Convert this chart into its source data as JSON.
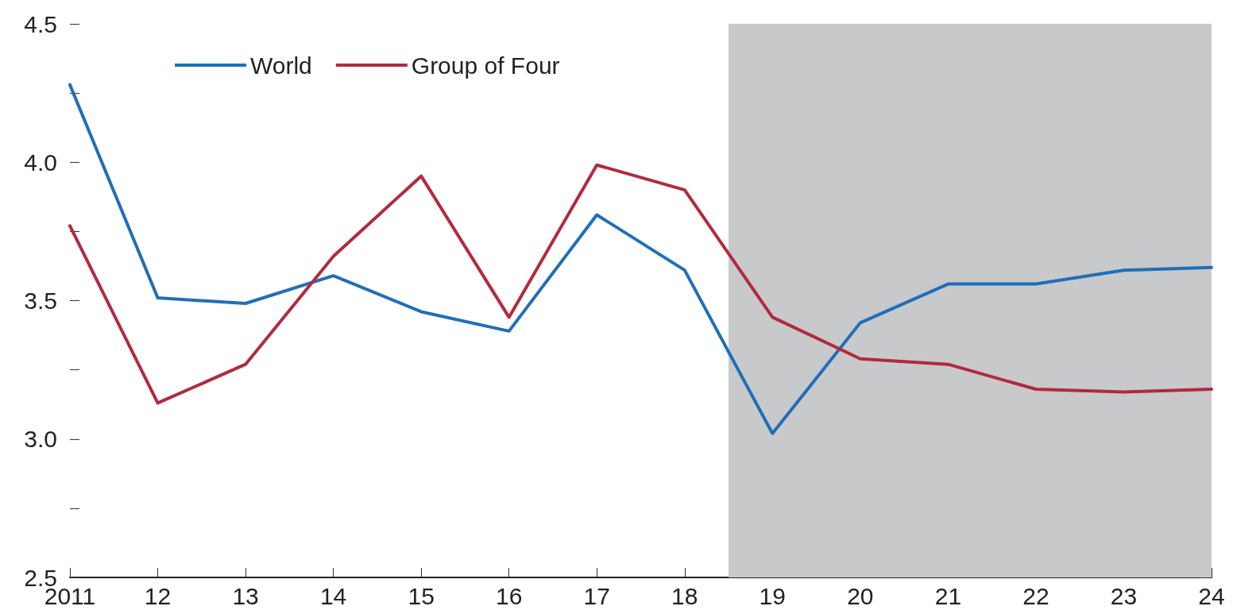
{
  "chart_data": {
    "type": "line",
    "x": [
      2011,
      2012,
      2013,
      2014,
      2015,
      2016,
      2017,
      2018,
      2019,
      2020,
      2021,
      2022,
      2023,
      2024
    ],
    "xlim": [
      2011,
      2024
    ],
    "xticks": [
      2011,
      {
        "value": 2012,
        "label": "12"
      },
      {
        "value": 2013,
        "label": "13"
      },
      {
        "value": 2014,
        "label": "14"
      },
      {
        "value": 2015,
        "label": "15"
      },
      {
        "value": 2016,
        "label": "16"
      },
      {
        "value": 2017,
        "label": "17"
      },
      {
        "value": 2018,
        "label": "18"
      },
      {
        "value": 2019,
        "label": "19"
      },
      {
        "value": 2020,
        "label": "20"
      },
      {
        "value": 2021,
        "label": "21"
      },
      {
        "value": 2022,
        "label": "22"
      },
      {
        "value": 2023,
        "label": "23"
      },
      {
        "value": 2024,
        "label": "24"
      }
    ],
    "ylim": [
      2.5,
      4.5
    ],
    "yticks": [
      2.5,
      {
        "value": 2.75,
        "label": null
      },
      {
        "value": 3,
        "label": "3.0"
      },
      {
        "value": 3.25,
        "label": null
      },
      3.5,
      {
        "value": 3.75,
        "label": null
      },
      {
        "value": 4,
        "label": "4.0"
      },
      {
        "value": 4.25,
        "label": null
      },
      4.5
    ],
    "series": [
      {
        "name": "World",
        "color": "#1f6fb8",
        "values": [
          4.28,
          3.51,
          3.49,
          3.59,
          3.46,
          3.39,
          3.81,
          3.61,
          3.02,
          3.42,
          3.56,
          3.56,
          3.61,
          3.62
        ]
      },
      {
        "name": "Group of Four",
        "color": "#b22a3e",
        "values": [
          3.77,
          3.13,
          3.27,
          3.66,
          3.95,
          3.44,
          3.99,
          3.9,
          3.44,
          3.29,
          3.27,
          3.18,
          3.17,
          3.18
        ]
      }
    ],
    "bands": [
      {
        "axis": "x",
        "from": 2018.5,
        "to": 2024,
        "color": "#c8c9cb"
      }
    ],
    "grid": false,
    "legend": "top left",
    "marker": "none",
    "line_style": "solid"
  }
}
